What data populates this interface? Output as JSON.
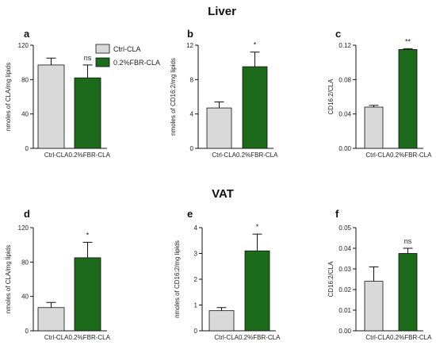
{
  "titles": {
    "liver": "Liver",
    "vat": "VAT"
  },
  "legend": {
    "items": [
      {
        "label": "Ctrl-CLA",
        "color": "#d9d9d9"
      },
      {
        "label": "0.2%FBR-CLA",
        "color": "#1b6b1b"
      }
    ]
  },
  "chart_data": [
    {
      "id": "a",
      "type": "bar",
      "section": "Liver",
      "ylabel": "nmoles of CLA/mg lipids",
      "ylim": [
        0,
        120
      ],
      "yticks": [
        "0",
        "40",
        "80",
        "120"
      ],
      "categories": [
        "Ctrl-CLA",
        "0.2%FBR-CLA"
      ],
      "values": [
        97,
        82
      ],
      "errors": [
        8,
        15
      ],
      "significance": "ns"
    },
    {
      "id": "b",
      "type": "bar",
      "section": "Liver",
      "ylabel": "nmoles of CD16:2/mg lipids",
      "ylim": [
        0,
        12
      ],
      "yticks": [
        "0",
        "4",
        "8",
        "12"
      ],
      "categories": [
        "Ctrl-CLA",
        "0.2%FBR-CLA"
      ],
      "values": [
        4.7,
        9.5
      ],
      "errors": [
        0.7,
        1.7
      ],
      "significance": "*"
    },
    {
      "id": "c",
      "type": "bar",
      "section": "Liver",
      "ylabel": "CD16:2/CLA",
      "ylim": [
        0,
        0.12
      ],
      "yticks": [
        "0.00",
        "0.04",
        "0.08",
        "0.12"
      ],
      "categories": [
        "Ctrl-CLA",
        "0.2%FBR-CLA"
      ],
      "values": [
        0.048,
        0.115
      ],
      "errors": [
        0.002,
        0.001
      ],
      "significance": "**"
    },
    {
      "id": "d",
      "type": "bar",
      "section": "VAT",
      "ylabel": "nmoles of CLA/mg lipids",
      "ylim": [
        0,
        120
      ],
      "yticks": [
        "0",
        "40",
        "80",
        "120"
      ],
      "categories": [
        "Ctrl-CLA",
        "0.2%FBR-CLA"
      ],
      "values": [
        27,
        85
      ],
      "errors": [
        6,
        18
      ],
      "significance": "*"
    },
    {
      "id": "e",
      "type": "bar",
      "section": "VAT",
      "ylabel": "nmoles of CD16:2/mg lipids",
      "ylim": [
        0,
        4
      ],
      "yticks": [
        "0",
        "1",
        "2",
        "3",
        "4"
      ],
      "categories": [
        "Ctrl-CLA",
        "0.2%FBR-CLA"
      ],
      "values": [
        0.78,
        3.1
      ],
      "errors": [
        0.12,
        0.65
      ],
      "significance": "*"
    },
    {
      "id": "f",
      "type": "bar",
      "section": "VAT",
      "ylabel": "CD16:2/CLA",
      "ylim": [
        0,
        0.05
      ],
      "yticks": [
        "0.00",
        "0.01",
        "0.02",
        "0.03",
        "0.04",
        "0.05"
      ],
      "categories": [
        "Ctrl-CLA",
        "0.2%FBR-CLA"
      ],
      "values": [
        0.024,
        0.0375
      ],
      "errors": [
        0.007,
        0.0025
      ],
      "significance": "ns"
    }
  ]
}
